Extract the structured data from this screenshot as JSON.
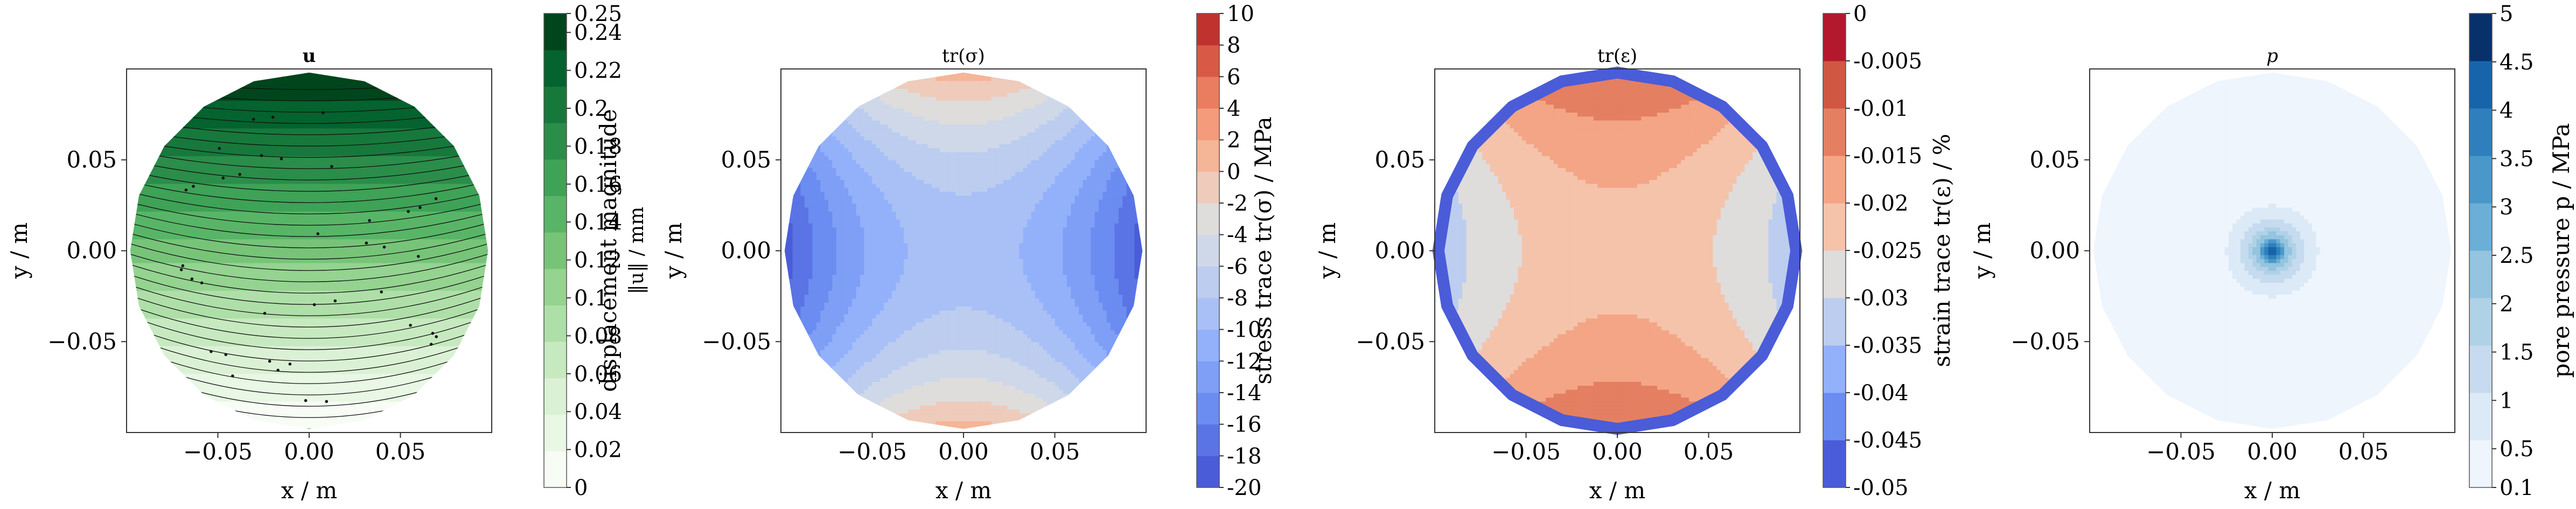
{
  "chart_data": [
    {
      "type": "contour",
      "title": "u",
      "xlabel": "x / m",
      "ylabel": "y / m",
      "xlim": [
        -0.1,
        0.1
      ],
      "ylim": [
        -0.1,
        0.1
      ],
      "xticks": [
        "−0.05",
        "0.00",
        "0.05"
      ],
      "yticks": [
        "0.05",
        "0.00",
        "−0.05"
      ],
      "colorbar": {
        "label": "displacement magnitude ‖u‖ / mm",
        "label_line1": "displacement magnitude",
        "label_line2": "‖u‖ / mm",
        "min": 0,
        "max": 0.25,
        "tick_values": [
          0,
          0.02,
          0.04,
          0.06,
          0.08,
          0.1,
          0.12,
          0.14,
          0.16,
          0.18,
          0.2,
          0.22,
          0.24,
          0.25
        ],
        "ticks": [
          "0",
          "0.02",
          "0.04",
          "0.06",
          "0.08",
          "0.1",
          "0.12",
          "0.14",
          "0.16",
          "0.18",
          "0.2",
          "0.22",
          "0.24",
          "0.25"
        ],
        "colormap": "Greens",
        "colors": [
          "#f7fcf5",
          "#e9f7e5",
          "#dbf1d5",
          "#c7e9c0",
          "#afdfa8",
          "#94d390",
          "#77c479",
          "#58b567",
          "#3ea257",
          "#2b8d4a",
          "#17783c",
          "#04632e",
          "#00451c"
        ]
      },
      "overlay": "displacement streamlines with arrows, field increasing from bottom (0) to top (0.25)",
      "field": {
        "pattern": "linear",
        "min_at": [
          0.0,
          -0.1
        ],
        "max_at": [
          0.0,
          0.1
        ]
      }
    },
    {
      "type": "contour",
      "title": "tr(σ)",
      "xlabel": "x / m",
      "ylabel": "y / m",
      "xlim": [
        -0.1,
        0.1
      ],
      "ylim": [
        -0.1,
        0.1
      ],
      "xticks": [
        "−0.05",
        "0.00",
        "0.05"
      ],
      "yticks": [
        "0.05",
        "0.00",
        "−0.05"
      ],
      "colorbar": {
        "label": "stress trace tr(σ) / MPa",
        "min": -20,
        "max": 10,
        "tick_values": [
          -20,
          -18,
          -16,
          -14,
          -12,
          -10,
          -8,
          -6,
          -4,
          -2,
          0,
          2,
          4,
          6,
          8,
          10
        ],
        "ticks": [
          "-20",
          "-18",
          "-16",
          "-14",
          "-12",
          "-10",
          "-8",
          "-6",
          "-4",
          "-2",
          "0",
          "2",
          "4",
          "6",
          "8",
          "10"
        ],
        "colormap": "coolwarm",
        "colors": [
          "#4a5cd8",
          "#5a74e6",
          "#6b8cf0",
          "#7f9ff6",
          "#93b1fb",
          "#a9c0f6",
          "#bccdef",
          "#ced8e9",
          "#dfdcdc",
          "#eecbbb",
          "#f5b597",
          "#f49b7c",
          "#ea7c5f",
          "#d85a46",
          "#c0322e"
        ]
      },
      "field": {
        "pattern": "saddle",
        "range": [
          -20,
          2
        ],
        "low_at": [
          "left",
          "right"
        ],
        "high_at": [
          "top",
          "bottom"
        ]
      }
    },
    {
      "type": "contour",
      "title": "tr(ε)",
      "xlabel": "x / m",
      "ylabel": "y / m",
      "xlim": [
        -0.1,
        0.1
      ],
      "ylim": [
        -0.1,
        0.1
      ],
      "xticks": [
        "−0.05",
        "0.00",
        "0.05"
      ],
      "yticks": [
        "0.05",
        "0.00",
        "−0.05"
      ],
      "colorbar": {
        "label": "strain trace tr(ε) / %",
        "min": -0.05,
        "max": 0,
        "tick_values": [
          -0.05,
          -0.045,
          -0.04,
          -0.035,
          -0.03,
          -0.025,
          -0.02,
          -0.015,
          -0.01,
          -0.005,
          0
        ],
        "ticks": [
          "-0.05",
          "-0.045",
          "-0.04",
          "-0.035",
          "-0.03",
          "-0.025",
          "-0.02",
          "-0.015",
          "-0.01",
          "-0.005",
          "0"
        ],
        "colormap": "coolwarm",
        "colors": [
          "#4a5cd8",
          "#6b8cf0",
          "#93b1fb",
          "#bccdef",
          "#dfdcdc",
          "#f5c3aa",
          "#f4a586",
          "#e47f62",
          "#cf5743",
          "#b4182c"
        ]
      },
      "field": {
        "pattern": "saddle",
        "range": [
          -0.035,
          -0.008
        ],
        "low_at": [
          "left",
          "right"
        ],
        "high_at": [
          "top",
          "bottom"
        ],
        "boundary_ring": -0.05
      }
    },
    {
      "type": "contour",
      "title": "p",
      "xlabel": "x / m",
      "ylabel": "y / m",
      "xlim": [
        -0.1,
        0.1
      ],
      "ylim": [
        -0.1,
        0.1
      ],
      "xticks": [
        "−0.05",
        "0.00",
        "0.05"
      ],
      "yticks": [
        "0.05",
        "0.00",
        "−0.05"
      ],
      "colorbar": {
        "label": "pore pressure p / MPa",
        "min": 0.1,
        "max": 5,
        "tick_values": [
          0.1,
          0.5,
          1,
          1.5,
          2,
          2.5,
          3,
          3.5,
          4,
          4.5,
          5
        ],
        "ticks": [
          "0.1",
          "0.5",
          "1",
          "1.5",
          "2",
          "2.5",
          "3",
          "3.5",
          "4",
          "4.5",
          "5"
        ],
        "colormap": "Blues",
        "colors": [
          "#eef5fc",
          "#dceaf7",
          "#c6dbef",
          "#b0d2e7",
          "#94c4df",
          "#6baed6",
          "#4a98c9",
          "#2f7fbc",
          "#1764ab",
          "#08306b"
        ]
      },
      "field": {
        "pattern": "radial",
        "center": [
          0,
          0
        ],
        "peak": 5,
        "base": 0.1
      }
    }
  ]
}
